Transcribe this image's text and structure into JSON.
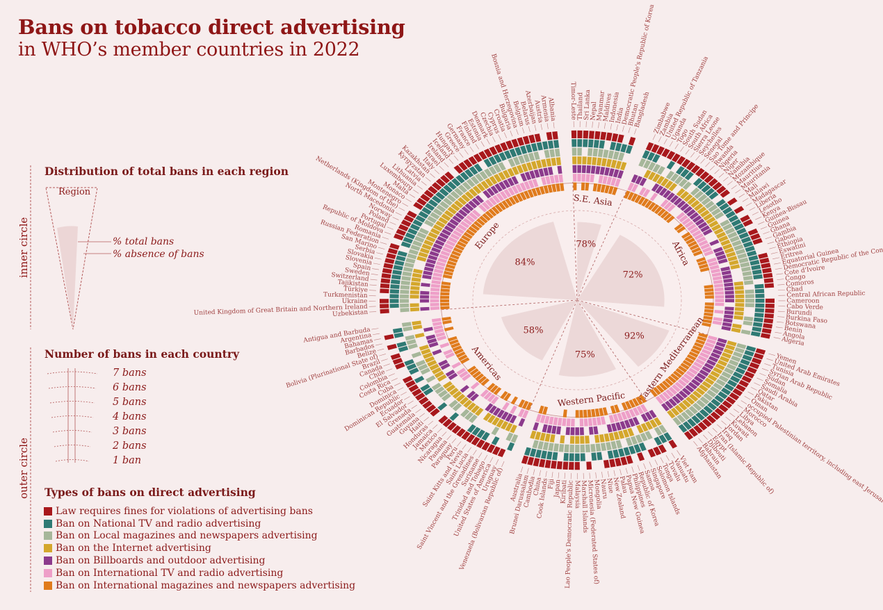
{
  "title": "Bans on tobacco direct advertising",
  "subtitle": "in WHO’s member countries in 2022",
  "inner_section": {
    "heading": "Distribution of total bans in each region",
    "side_label": "inner circle",
    "wedge_label": "Region",
    "total_label": "% total bans",
    "absence_label": "% absence of bans"
  },
  "outer_section": {
    "heading": "Number of bans in each country",
    "side_label": "outer circle",
    "levels": [
      "7 bans",
      "6 bans",
      "5 bans",
      "4 bans",
      "3 bans",
      "2 bans",
      "1 ban"
    ]
  },
  "types_section": {
    "heading": "Types of bans on direct advertising"
  },
  "colors": {
    "background": "#f7eded",
    "title": "#8e1616",
    "wedge": "#ecd8d8"
  },
  "chart_data": {
    "type": "radial",
    "ban_types": [
      {
        "name": "Law requires fines for violations of advertising bans",
        "color": "#a8181c"
      },
      {
        "name": "Ban on National TV and radio advertising",
        "color": "#2f7a74"
      },
      {
        "name": "Ban on Local magazines and newspapers advertising",
        "color": "#a6b79a"
      },
      {
        "name": "Ban on the Internet advertising",
        "color": "#d4a72c"
      },
      {
        "name": "Ban on Billboards and outdoor advertising",
        "color": "#8c3a8c"
      },
      {
        "name": "Ban on International TV and radio advertising",
        "color": "#ee9fc8"
      },
      {
        "name": "Ban on International magazines and newspapers advertising",
        "color": "#e07b1c"
      }
    ],
    "regions": [
      {
        "name": "S.E. Asia",
        "pct": 78,
        "countries": [
          "Timor-Leste",
          "Thailand",
          "Sri Lanka",
          "Nepal",
          "Myanmar",
          "Maldives",
          "Indonesia",
          "India",
          "Democratic People's Republic of Korea",
          "Bhutan",
          "Bangladesh"
        ]
      },
      {
        "name": "Africa",
        "pct": 72,
        "countries": [
          "Zimbabwe",
          "Zambia",
          "United Republic of Tanzania",
          "Uganda",
          "Togo",
          "South Sudan",
          "South Africa",
          "Sierra Leone",
          "Seychelles",
          "Senegal",
          "Sao Tome and Principe",
          "Rwanda",
          "Nigeria",
          "Niger",
          "Namibia",
          "Mozambique",
          "Mauritius",
          "Mauritania",
          "Mali",
          "Malawi",
          "Madagascar",
          "Liberia",
          "Lesotho",
          "Kenya",
          "Guinea-Bissau",
          "Guinea",
          "Ghana",
          "Gambia",
          "Gabon",
          "Ethiopia",
          "Eswatini",
          "Eritrea",
          "Equatorial Guinea",
          "Democratic Republic of the Congo",
          "Cote d'Ivoire",
          "Congo",
          "Comoros",
          "Chad",
          "Central African Republic",
          "Cameroon",
          "Cabo Verde",
          "Burundi",
          "Burkina Faso",
          "Botswana",
          "Benin",
          "Angola",
          "Algeria"
        ]
      },
      {
        "name": "Eastern Mediterranean",
        "pct": 92,
        "countries": [
          "Yemen",
          "United Arab Emirates",
          "Tunisia",
          "Syrian Arab Republic",
          "Sudan",
          "Somalia",
          "Saudi Arabia",
          "Qatar",
          "Pakistan",
          "Oman",
          "occupied Palestinian territory, including east Jerusalem",
          "Morocco",
          "Libya",
          "Lebanon",
          "Kuwait",
          "Jordan",
          "Iraq",
          "Iran (Islamic Republic of)",
          "Egypt",
          "Djibouti",
          "Bahrain",
          "Afghanistan"
        ]
      },
      {
        "name": "Western Pacific",
        "pct": 75,
        "countries": [
          "Viet Nam",
          "Vanuatu",
          "Tuvalu",
          "Tonga",
          "Solomon Islands",
          "Singapore",
          "Samoa",
          "Republic of Korea",
          "Philippines",
          "Papua New Guinea",
          "Palau",
          "New Zealand",
          "Niue",
          "Nauru",
          "Mongolia",
          "Micronesia (Federated States of)",
          "Marshall Islands",
          "Malaysia",
          "Lao People's Democratic Republic",
          "Kiribati",
          "Japan",
          "Fiji",
          "Cook Islands",
          "China",
          "Cambodia",
          "Brunei Darussalam",
          "Australia"
        ]
      },
      {
        "name": "Americas",
        "pct": 58,
        "countries": [
          "Venezuela (Bolivarian Republic of)",
          "Uruguay",
          "United States of America",
          "Trinidad and Tobago",
          "Suriname",
          "Saint Vincent and the Grenadines",
          "Saint Lucia",
          "Saint Kitts and Nevis",
          "Peru",
          "Paraguay",
          "Panama",
          "Nicaragua",
          "Mexico",
          "Jamaica",
          "Honduras",
          "Haiti",
          "Guyana",
          "Guatemala",
          "Grenada",
          "El Salvador",
          "Ecuador",
          "Dominican Republic",
          "Dominica",
          "Cuba",
          "Costa Rica",
          "Colombia",
          "Chile",
          "Canada",
          "Brazil",
          "Bolivia (Plurinational State of)",
          "Belize",
          "Barbados",
          "Bahamas",
          "Argentina",
          "Antigua and Barbuda"
        ]
      },
      {
        "name": "Europe",
        "pct": 84,
        "countries": [
          "Uzbekistan",
          "United Kingdom of Great Britain and Northern Ireland",
          "Ukraine",
          "Turkmenistan",
          "Türkiye",
          "Tajikistan",
          "Switzerland",
          "Sweden",
          "Spain",
          "Slovenia",
          "Slovakia",
          "Serbia",
          "San Marino",
          "Russian Federation",
          "Romania",
          "Republic of Moldova",
          "Portugal",
          "Poland",
          "Norway",
          "North Macedonia",
          "Netherlands (Kingdom of the)",
          "Montenegro",
          "Monaco",
          "Malta",
          "Luxembourg",
          "Lithuania",
          "Latvia",
          "Kyrgyzstan",
          "Kazakhstan",
          "Italy",
          "Israel",
          "Ireland",
          "Iceland",
          "Hungary",
          "Greece",
          "Germany",
          "France",
          "Finland",
          "Estonia",
          "Denmark",
          "Czechia",
          "Cyprus",
          "Croatia",
          "Bulgaria",
          "Bosnia and Herzegovina",
          "Belgium",
          "Belarus",
          "Azerbaijan",
          "Austria",
          "Armenia",
          "Albania"
        ]
      }
    ]
  }
}
